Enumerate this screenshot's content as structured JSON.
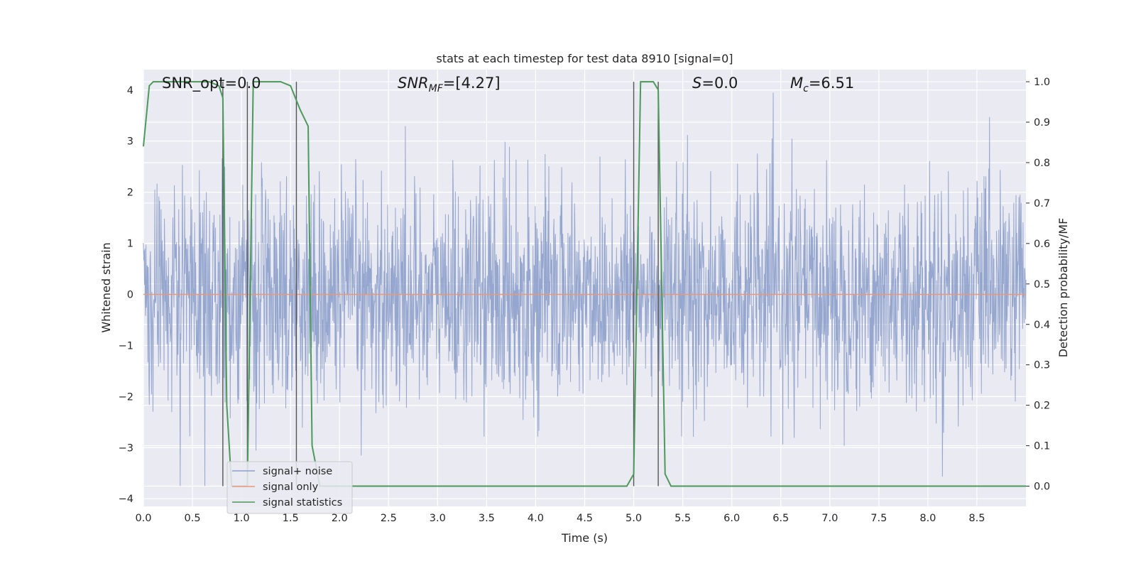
{
  "chart_data": {
    "type": "line",
    "title": "stats at each timestep for test data 8910 [signal=0]",
    "xlabel": "Time (s)",
    "ylabel": "Whitened strain",
    "y2label": "Detection probability/MF",
    "xlim": [
      0.0,
      9.0
    ],
    "ylim": [
      -4.15,
      4.4
    ],
    "y2lim": [
      -0.05,
      1.03
    ],
    "xticks": [
      "0.0",
      "0.5",
      "1.0",
      "1.5",
      "2.0",
      "2.5",
      "3.0",
      "3.5",
      "4.0",
      "4.5",
      "5.0",
      "5.5",
      "6.0",
      "6.5",
      "7.0",
      "7.5",
      "8.0",
      "8.5"
    ],
    "yticks": [
      "4",
      "3",
      "2",
      "1",
      "0",
      "−1",
      "−2",
      "−3",
      "−4"
    ],
    "y2ticks": [
      "1.0",
      "0.9",
      "0.8",
      "0.7",
      "0.6",
      "0.5",
      "0.4",
      "0.3",
      "0.2",
      "0.1",
      "0.0"
    ],
    "grid": true,
    "legend_placement": "lower-left",
    "annotations": {
      "snr_opt": "SNR_opt=0.0",
      "snr_mf_main": "SNR",
      "snr_mf_sub": "MF",
      "snr_mf_value": "=[4.27]",
      "s_main": "S",
      "s_value": "=0.0",
      "mc_main": "M",
      "mc_sub": "c",
      "mc_value": "=6.51"
    },
    "series": [
      {
        "name": "signal+ noise",
        "axis": "left",
        "color": "#8da0cb",
        "description_values": "whitened noise samples, amplitude approx within [-3.8, 4.0]"
      },
      {
        "name": "signal only",
        "axis": "left",
        "color": "#e5997a",
        "x": [
          0.0,
          9.0
        ],
        "y": [
          0.0,
          0.0
        ]
      },
      {
        "name": "signal statistics",
        "axis": "right",
        "color": "#4c9a5a",
        "x": [
          0.0,
          0.06,
          0.1,
          0.5,
          0.67,
          0.77,
          0.81,
          0.85,
          0.9,
          1.0,
          1.06,
          1.12,
          1.4,
          1.5,
          1.6,
          1.68,
          1.72,
          1.8,
          2.0,
          3.0,
          4.0,
          4.93,
          5.0,
          5.07,
          5.1,
          5.2,
          5.25,
          5.32,
          5.38,
          5.5,
          6.0,
          7.0,
          8.0,
          9.0
        ],
        "y": [
          0.84,
          0.99,
          1.0,
          1.0,
          1.0,
          0.99,
          0.96,
          0.2,
          0.0,
          0.0,
          0.0,
          1.0,
          1.0,
          0.99,
          0.93,
          0.89,
          0.1,
          0.0,
          0.0,
          0.0,
          0.0,
          0.0,
          0.03,
          1.0,
          1.0,
          1.0,
          0.98,
          0.03,
          0.0,
          0.0,
          0.0,
          0.0,
          0.0,
          0.0
        ]
      }
    ],
    "vertical_markers_x": [
      0.81,
      1.06,
      1.56,
      5.0,
      5.25
    ]
  }
}
